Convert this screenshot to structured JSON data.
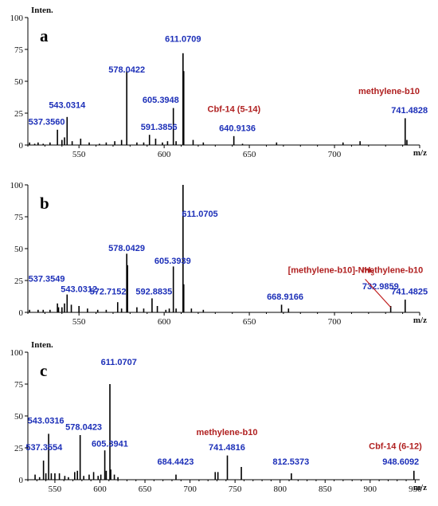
{
  "chart_data": [
    {
      "type": "bar",
      "panel_label": "a",
      "ylabel": "Inten.",
      "xlabel": "m/z",
      "xlim": [
        520,
        750
      ],
      "ylim": [
        0,
        100
      ],
      "xticks": [
        "550",
        "600",
        "650",
        "700"
      ],
      "yticks": [
        "0",
        "25",
        "50",
        "75",
        "100"
      ],
      "peaks": [
        {
          "mz": 521,
          "i": 2
        },
        {
          "mz": 524,
          "i": 1
        },
        {
          "mz": 526,
          "i": 2
        },
        {
          "mz": 529,
          "i": 1
        },
        {
          "mz": 533,
          "i": 2
        },
        {
          "mz": 537.356,
          "i": 12
        },
        {
          "mz": 540,
          "i": 4
        },
        {
          "mz": 541.5,
          "i": 6
        },
        {
          "mz": 543.0314,
          "i": 22
        },
        {
          "mz": 546,
          "i": 3
        },
        {
          "mz": 551,
          "i": 5
        },
        {
          "mz": 556,
          "i": 2
        },
        {
          "mz": 562,
          "i": 1
        },
        {
          "mz": 566,
          "i": 2
        },
        {
          "mz": 571,
          "i": 3
        },
        {
          "mz": 575,
          "i": 4
        },
        {
          "mz": 578.0422,
          "i": 58
        },
        {
          "mz": 584,
          "i": 2
        },
        {
          "mz": 588,
          "i": 2
        },
        {
          "mz": 591.3856,
          "i": 8
        },
        {
          "mz": 595,
          "i": 5
        },
        {
          "mz": 599,
          "i": 2
        },
        {
          "mz": 602,
          "i": 3
        },
        {
          "mz": 605.3948,
          "i": 29
        },
        {
          "mz": 607,
          "i": 3
        },
        {
          "mz": 611.0709,
          "i": 72
        },
        {
          "mz": 611.5,
          "i": 58
        },
        {
          "mz": 617,
          "i": 4
        },
        {
          "mz": 623,
          "i": 2
        },
        {
          "mz": 640.9136,
          "i": 7
        },
        {
          "mz": 646,
          "i": 1
        },
        {
          "mz": 666,
          "i": 2
        },
        {
          "mz": 705,
          "i": 2
        },
        {
          "mz": 715,
          "i": 3
        },
        {
          "mz": 741.4828,
          "i": 21
        },
        {
          "mz": 742.5,
          "i": 4
        }
      ],
      "labels": [
        {
          "text": "611.0709",
          "mz": 611.0709,
          "i": 81,
          "color": "#1c2fb8"
        },
        {
          "text": "578.0422",
          "mz": 578.0422,
          "i": 57,
          "color": "#1c2fb8"
        },
        {
          "text": "543.0314",
          "mz": 543.0314,
          "i": 29,
          "color": "#1c2fb8"
        },
        {
          "text": "537.3560",
          "mz": 531,
          "i": 16,
          "color": "#1c2fb8"
        },
        {
          "text": "605.3948",
          "mz": 598,
          "i": 33,
          "color": "#1c2fb8"
        },
        {
          "text": "591.3856",
          "mz": 597,
          "i": 12,
          "color": "#1c2fb8"
        },
        {
          "text": "Cbf-14 (5-14)",
          "mz": 641,
          "i": 26,
          "color": "#b02020"
        },
        {
          "text": "640.9136",
          "mz": 643,
          "i": 11,
          "color": "#1c2fb8"
        },
        {
          "text": "methylene-b10",
          "mz": 732,
          "i": 40,
          "color": "#b02020"
        },
        {
          "text": "741.4828",
          "mz": 744,
          "i": 25,
          "color": "#1c2fb8"
        }
      ]
    },
    {
      "type": "bar",
      "panel_label": "b",
      "ylabel": "",
      "xlabel": "m/z",
      "xlim": [
        520,
        750
      ],
      "ylim": [
        0,
        100
      ],
      "xticks": [
        "550",
        "600",
        "650",
        "700"
      ],
      "yticks": [
        "0",
        "25",
        "50",
        "75",
        "100"
      ],
      "peaks": [
        {
          "mz": 521,
          "i": 2
        },
        {
          "mz": 526,
          "i": 2
        },
        {
          "mz": 529,
          "i": 2
        },
        {
          "mz": 533,
          "i": 2
        },
        {
          "mz": 537.3549,
          "i": 7
        },
        {
          "mz": 538,
          "i": 4
        },
        {
          "mz": 540,
          "i": 4
        },
        {
          "mz": 541.5,
          "i": 7
        },
        {
          "mz": 543.0312,
          "i": 14
        },
        {
          "mz": 545.5,
          "i": 6
        },
        {
          "mz": 550,
          "i": 5
        },
        {
          "mz": 555,
          "i": 3
        },
        {
          "mz": 561,
          "i": 2
        },
        {
          "mz": 566,
          "i": 2
        },
        {
          "mz": 572.7152,
          "i": 8
        },
        {
          "mz": 575,
          "i": 3
        },
        {
          "mz": 578.0429,
          "i": 46
        },
        {
          "mz": 578.5,
          "i": 37
        },
        {
          "mz": 584,
          "i": 4
        },
        {
          "mz": 588,
          "i": 3
        },
        {
          "mz": 592.8835,
          "i": 11
        },
        {
          "mz": 596,
          "i": 5
        },
        {
          "mz": 601,
          "i": 2
        },
        {
          "mz": 603,
          "i": 3
        },
        {
          "mz": 605.3939,
          "i": 36
        },
        {
          "mz": 607,
          "i": 3
        },
        {
          "mz": 611.0705,
          "i": 100
        },
        {
          "mz": 611.5,
          "i": 22
        },
        {
          "mz": 616,
          "i": 3
        },
        {
          "mz": 623,
          "i": 2
        },
        {
          "mz": 668.9166,
          "i": 6
        },
        {
          "mz": 673,
          "i": 3
        },
        {
          "mz": 732.9859,
          "i": 5
        },
        {
          "mz": 741.4825,
          "i": 10
        }
      ],
      "labels": [
        {
          "text": "611.0705",
          "mz": 621,
          "i": 75,
          "color": "#1c2fb8"
        },
        {
          "text": "578.0429",
          "mz": 578,
          "i": 48,
          "color": "#1c2fb8"
        },
        {
          "text": "605.3939",
          "mz": 605,
          "i": 38,
          "color": "#1c2fb8"
        },
        {
          "text": "537.3549",
          "mz": 531,
          "i": 24,
          "color": "#1c2fb8"
        },
        {
          "text": "543.0312",
          "mz": 550,
          "i": 16,
          "color": "#1c2fb8"
        },
        {
          "text": "572.7152",
          "mz": 567,
          "i": 14,
          "color": "#1c2fb8"
        },
        {
          "text": "592.8835",
          "mz": 594,
          "i": 14,
          "color": "#1c2fb8"
        },
        {
          "text": "668.9166",
          "mz": 671,
          "i": 10,
          "color": "#1c2fb8"
        },
        {
          "text": "[methylene-b10]-NH",
          "mz": 698,
          "i": 31,
          "color": "#b02020"
        },
        {
          "text": "732.9859",
          "mz": 727,
          "i": 18,
          "color": "#1c2fb8"
        },
        {
          "text": "methylene-b10",
          "mz": 734,
          "i": 31,
          "color": "#b02020"
        },
        {
          "text": "741.4825",
          "mz": 744,
          "i": 14,
          "color": "#1c2fb8"
        }
      ]
    },
    {
      "type": "bar",
      "panel_label": "c",
      "ylabel": "Inten.",
      "xlabel": "m/z",
      "xlim": [
        520,
        955
      ],
      "ylim": [
        0,
        100
      ],
      "xticks": [
        "550",
        "600",
        "650",
        "700",
        "750",
        "800",
        "850",
        "900",
        "950"
      ],
      "yticks": [
        "0",
        "25",
        "50",
        "75",
        "100"
      ],
      "peaks": [
        {
          "mz": 528,
          "i": 4
        },
        {
          "mz": 533,
          "i": 2
        },
        {
          "mz": 537.3554,
          "i": 15
        },
        {
          "mz": 540,
          "i": 5
        },
        {
          "mz": 543.0316,
          "i": 36
        },
        {
          "mz": 546,
          "i": 5
        },
        {
          "mz": 550,
          "i": 5
        },
        {
          "mz": 555,
          "i": 5
        },
        {
          "mz": 561,
          "i": 3
        },
        {
          "mz": 565,
          "i": 2
        },
        {
          "mz": 572,
          "i": 6
        },
        {
          "mz": 575,
          "i": 7
        },
        {
          "mz": 578.0423,
          "i": 35
        },
        {
          "mz": 582,
          "i": 3
        },
        {
          "mz": 588,
          "i": 4
        },
        {
          "mz": 593,
          "i": 6
        },
        {
          "mz": 598,
          "i": 3
        },
        {
          "mz": 601,
          "i": 4
        },
        {
          "mz": 605.3941,
          "i": 23
        },
        {
          "mz": 607,
          "i": 7
        },
        {
          "mz": 611.0707,
          "i": 75
        },
        {
          "mz": 612,
          "i": 8
        },
        {
          "mz": 616,
          "i": 4
        },
        {
          "mz": 620,
          "i": 2
        },
        {
          "mz": 684.4423,
          "i": 4
        },
        {
          "mz": 728,
          "i": 6
        },
        {
          "mz": 731,
          "i": 6
        },
        {
          "mz": 741.4816,
          "i": 19
        },
        {
          "mz": 757,
          "i": 10
        },
        {
          "mz": 812.5373,
          "i": 5
        },
        {
          "mz": 948.6092,
          "i": 7
        }
      ],
      "labels": [
        {
          "text": "611.0707",
          "mz": 621,
          "i": 90,
          "color": "#1c2fb8"
        },
        {
          "text": "543.0316",
          "mz": 540,
          "i": 44,
          "color": "#1c2fb8"
        },
        {
          "text": "578.0423",
          "mz": 582,
          "i": 39,
          "color": "#1c2fb8"
        },
        {
          "text": "605.3941",
          "mz": 611,
          "i": 26,
          "color": "#1c2fb8"
        },
        {
          "text": "537.3554",
          "mz": 538,
          "i": 23,
          "color": "#1c2fb8"
        },
        {
          "text": "684.4423",
          "mz": 684,
          "i": 12,
          "color": "#1c2fb8"
        },
        {
          "text": "methylene-b10",
          "mz": 741,
          "i": 35,
          "color": "#b02020"
        },
        {
          "text": "741.4816",
          "mz": 741,
          "i": 23,
          "color": "#1c2fb8"
        },
        {
          "text": "812.5373",
          "mz": 812,
          "i": 12,
          "color": "#1c2fb8"
        },
        {
          "text": "Cbf-14 (6-12)",
          "mz": 928,
          "i": 24,
          "color": "#b02020"
        },
        {
          "text": "948.6092",
          "mz": 934,
          "i": 12,
          "color": "#1c2fb8"
        }
      ]
    }
  ]
}
